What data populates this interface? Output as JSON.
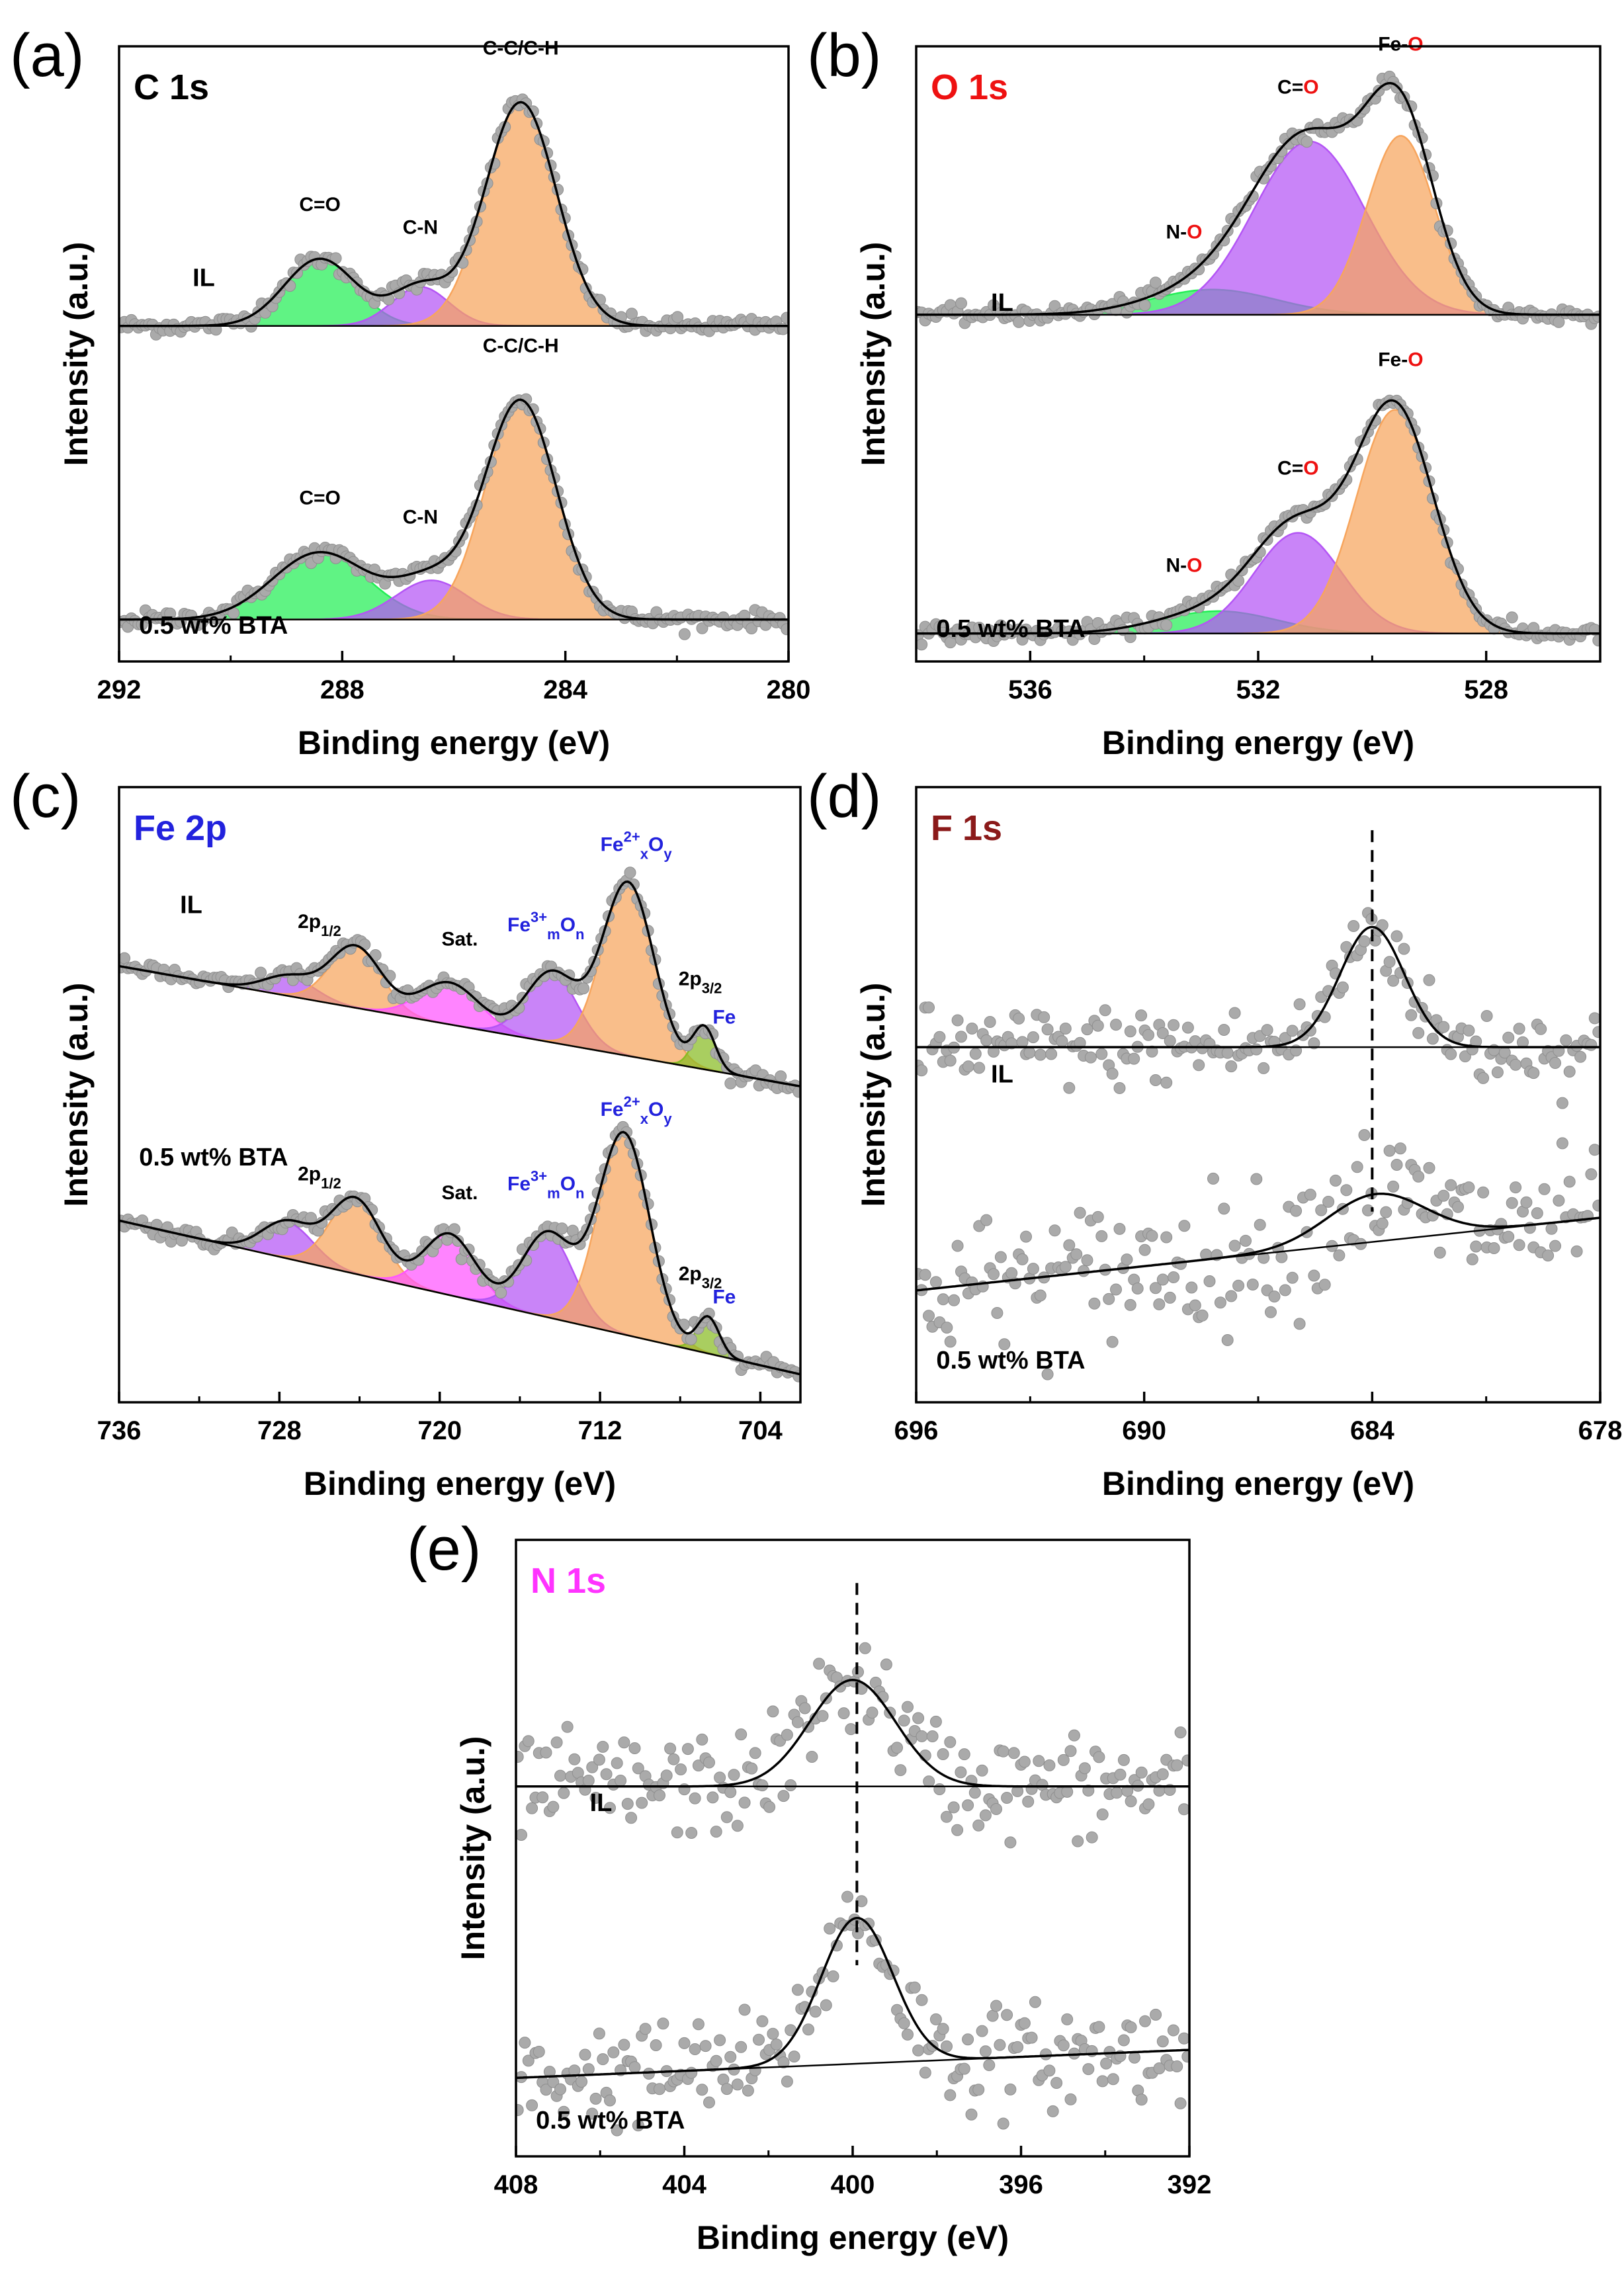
{
  "colors": {
    "green": "#22ee55",
    "purple": "#b455f5",
    "orange": "#f7a55d",
    "magenta": "#ff55ff",
    "olive": "#88bb22",
    "points": "#aaaaaa",
    "black": "#000000",
    "red": "#ee1111",
    "blue": "#2222dd",
    "darkred": "#8b1a1a",
    "pink": "#ff33ff"
  },
  "chart_data": [
    {
      "id": "a",
      "type": "scatter",
      "panel": "(a)",
      "title": "C 1s",
      "title_color": "black",
      "xlabel": "Binding energy (eV)",
      "ylabel": "Intensity (a.u.)",
      "xlim": [
        292,
        280
      ],
      "xticks": [
        "292",
        "288",
        "284",
        "280"
      ],
      "xtick_values": [
        292,
        288,
        284,
        280
      ],
      "ylim": [
        0,
        2.2
      ],
      "yticks": false,
      "spectra": [
        {
          "label": "IL",
          "baseline": [
            1.2,
            1.2
          ],
          "noise": 0.015,
          "peaks": [
            {
              "name": "C=O",
              "color": "green",
              "center": 288.4,
              "height": 0.24,
              "fwhm": 1.5
            },
            {
              "name": "C-N",
              "color": "purple",
              "center": 286.6,
              "height": 0.14,
              "fwhm": 1.2
            },
            {
              "name": "C-C/C-H",
              "color": "orange",
              "center": 284.8,
              "height": 0.8,
              "fwhm": 1.5
            }
          ],
          "annotations": [
            {
              "text": "C=O",
              "x": 288.4,
              "color": "black"
            },
            {
              "text": "C-N",
              "x": 286.6,
              "color": "black"
            },
            {
              "text": "C-C/C-H",
              "x": 284.8,
              "color": "black"
            }
          ]
        },
        {
          "label": "0.5 wt% BTA",
          "baseline": [
            0.15,
            0.15
          ],
          "noise": 0.015,
          "peaks": [
            {
              "name": "C=O",
              "color": "green",
              "center": 288.4,
              "height": 0.24,
              "fwhm": 2.0
            },
            {
              "name": "C-N",
              "color": "purple",
              "center": 286.4,
              "height": 0.14,
              "fwhm": 1.5
            },
            {
              "name": "C-C/C-H",
              "color": "orange",
              "center": 284.8,
              "height": 0.78,
              "fwhm": 1.5
            }
          ],
          "annotations": [
            {
              "text": "C=O",
              "x": 288.4,
              "color": "black"
            },
            {
              "text": "C-N",
              "x": 286.6,
              "color": "black"
            },
            {
              "text": "C-C/C-H",
              "x": 284.8,
              "color": "black"
            }
          ]
        }
      ]
    },
    {
      "id": "b",
      "type": "scatter",
      "panel": "(b)",
      "title": "O 1s",
      "title_color": "red",
      "xlabel": "Binding energy (eV)",
      "ylabel": "Intensity (a.u.)",
      "xlim": [
        538,
        526
      ],
      "xticks": [
        "536",
        "532",
        "528"
      ],
      "xtick_values": [
        536,
        532,
        528
      ],
      "ylim": [
        0,
        2.2
      ],
      "yticks": false,
      "spectra": [
        {
          "label": "IL",
          "baseline": [
            1.24,
            1.24
          ],
          "noise": 0.015,
          "peaks": [
            {
              "name": "N-O",
              "color": "green",
              "center": 532.8,
              "height": 0.09,
              "fwhm": 2.6
            },
            {
              "name": "C=O",
              "color": "purple",
              "center": 531.1,
              "height": 0.62,
              "fwhm": 2.3
            },
            {
              "name": "Fe-O",
              "color": "orange",
              "center": 529.5,
              "height": 0.64,
              "fwhm": 1.4
            }
          ],
          "annotations": [
            {
              "text": "N-O",
              "x": 533.3,
              "color": "mixed"
            },
            {
              "text": "C=O",
              "x": 531.3,
              "color": "mixed"
            },
            {
              "text": "Fe-O",
              "x": 529.5,
              "color": "mixed"
            }
          ]
        },
        {
          "label": "0.5 wt% BTA",
          "baseline": [
            0.1,
            0.1
          ],
          "noise": 0.015,
          "peaks": [
            {
              "name": "N-O",
              "color": "green",
              "center": 532.7,
              "height": 0.08,
              "fwhm": 2.4
            },
            {
              "name": "C=O",
              "color": "purple",
              "center": 531.3,
              "height": 0.36,
              "fwhm": 1.8
            },
            {
              "name": "Fe-O",
              "color": "orange",
              "center": 529.6,
              "height": 0.8,
              "fwhm": 1.6
            }
          ],
          "annotations": [
            {
              "text": "N-O",
              "x": 533.3,
              "color": "mixed"
            },
            {
              "text": "C=O",
              "x": 531.3,
              "color": "mixed"
            },
            {
              "text": "Fe-O",
              "x": 529.5,
              "color": "mixed"
            }
          ]
        }
      ]
    },
    {
      "id": "c",
      "type": "scatter",
      "panel": "(c)",
      "title": "Fe 2p",
      "title_color": "blue",
      "xlabel": "Binding energy (eV)",
      "ylabel": "Intensity (a.u.)",
      "xlim": [
        736,
        702
      ],
      "xticks": [
        "736",
        "728",
        "720",
        "712",
        "704"
      ],
      "xtick_values": [
        736,
        728,
        720,
        712,
        704
      ],
      "ylim": [
        0,
        2.2
      ],
      "yticks": false,
      "spectra": [
        {
          "label": "IL",
          "baseline": [
            1.56,
            1.13
          ],
          "noise": 0.015,
          "peaks": [
            {
              "name": "2p1/2-Fe3+",
              "color": "purple",
              "center": 727.5,
              "height": 0.07,
              "fwhm": 3.0
            },
            {
              "name": "2p1/2-Fe2+",
              "color": "orange",
              "center": 724.2,
              "height": 0.22,
              "fwhm": 3.0
            },
            {
              "name": "Sat.",
              "color": "magenta",
              "center": 719.5,
              "height": 0.15,
              "fwhm": 3.5
            },
            {
              "name": "Fe3+mOn",
              "color": "purple",
              "center": 714.4,
              "height": 0.25,
              "fwhm": 3.0
            },
            {
              "name": "Fe2+xOy",
              "color": "orange",
              "center": 710.6,
              "height": 0.62,
              "fwhm": 3.0
            },
            {
              "name": "Fe",
              "color": "olive",
              "center": 706.8,
              "height": 0.15,
              "fwhm": 1.3
            }
          ],
          "annotations": [
            {
              "text": "2p",
              "sub": "1/2",
              "x": 726.0,
              "color": "black"
            },
            {
              "text": "Sat.",
              "x": 719.0,
              "color": "black"
            },
            {
              "text": "Fe",
              "sup": "3+",
              "sub": "m",
              "tail": "On",
              "x": 714.7,
              "color": "blue"
            },
            {
              "text": "Fe",
              "sup": "2+",
              "sub": "x",
              "tail": "Oy",
              "x": 710.2,
              "color": "blue"
            },
            {
              "text": "2p",
              "sub": "3/2",
              "x": 707.0,
              "color": "black"
            },
            {
              "text": "Fe",
              "x": 705.8,
              "color": "blue"
            }
          ]
        },
        {
          "label": "0.5 wt% BTA",
          "baseline": [
            0.65,
            0.1
          ],
          "noise": 0.015,
          "peaks": [
            {
              "name": "2p1/2-Fe3+",
              "color": "purple",
              "center": 727.6,
              "height": 0.13,
              "fwhm": 3.0
            },
            {
              "name": "2p1/2-Fe2+",
              "color": "orange",
              "center": 724.2,
              "height": 0.27,
              "fwhm": 3.0
            },
            {
              "name": "Sat.",
              "color": "magenta",
              "center": 719.5,
              "height": 0.22,
              "fwhm": 3.0
            },
            {
              "name": "Fe3+mOn",
              "color": "purple",
              "center": 714.6,
              "height": 0.3,
              "fwhm": 3.0
            },
            {
              "name": "Fe2+xOy",
              "color": "orange",
              "center": 710.8,
              "height": 0.72,
              "fwhm": 3.0
            },
            {
              "name": "Fe",
              "color": "olive",
              "center": 706.6,
              "height": 0.13,
              "fwhm": 1.3
            }
          ],
          "annotations": [
            {
              "text": "2p",
              "sub": "1/2",
              "x": 726.0,
              "color": "black"
            },
            {
              "text": "Sat.",
              "x": 719.0,
              "color": "black"
            },
            {
              "text": "Fe",
              "sup": "3+",
              "sub": "m",
              "tail": "On",
              "x": 714.7,
              "color": "blue"
            },
            {
              "text": "Fe",
              "sup": "2+",
              "sub": "x",
              "tail": "Oy",
              "x": 710.2,
              "color": "blue"
            },
            {
              "text": "2p",
              "sub": "3/2",
              "x": 707.0,
              "color": "black"
            },
            {
              "text": "Fe",
              "x": 705.8,
              "color": "blue"
            }
          ]
        }
      ]
    },
    {
      "id": "d",
      "type": "scatter",
      "panel": "(d)",
      "title": "F 1s",
      "title_color": "darkred",
      "xlabel": "Binding energy (eV)",
      "ylabel": "Intensity (a.u.)",
      "xlim": [
        696,
        678
      ],
      "xticks": [
        "696",
        "690",
        "684",
        "678"
      ],
      "xtick_values": [
        696,
        690,
        684,
        678
      ],
      "ylim": [
        0,
        2.2
      ],
      "yticks": false,
      "dashed_x": 684.0,
      "spectra": [
        {
          "label": "IL",
          "baseline": [
            1.27,
            1.27
          ],
          "noise": 0.07,
          "peaks": [
            {
              "name": "F",
              "color": "none",
              "center": 684.0,
              "height": 0.43,
              "fwhm": 2.0
            }
          ],
          "annotations": []
        },
        {
          "label": "0.5 wt% BTA",
          "baseline": [
            0.4,
            0.66
          ],
          "noise": 0.12,
          "peaks": [
            {
              "name": "F",
              "color": "none",
              "center": 683.9,
              "height": 0.17,
              "fwhm": 3.0
            }
          ],
          "annotations": []
        }
      ]
    },
    {
      "id": "e",
      "type": "scatter",
      "panel": "(e)",
      "title": "N 1s",
      "title_color": "pink",
      "xlabel": "Binding energy (eV)",
      "ylabel": "Intensity (a.u.)",
      "xlim": [
        408,
        392
      ],
      "xticks": [
        "408",
        "404",
        "400",
        "396",
        "392"
      ],
      "xtick_values": [
        408,
        404,
        400,
        396,
        392
      ],
      "ylim": [
        0,
        2.2
      ],
      "yticks": false,
      "dashed_x": 399.9,
      "spectra": [
        {
          "label": "IL",
          "baseline": [
            1.32,
            1.32
          ],
          "noise": 0.09,
          "peaks": [
            {
              "name": "N",
              "color": "none",
              "center": 400.0,
              "height": 0.38,
              "fwhm": 2.4
            }
          ],
          "annotations": []
        },
        {
          "label": "0.5 wt% BTA",
          "baseline": [
            0.28,
            0.38
          ],
          "noise": 0.09,
          "peaks": [
            {
              "name": "N",
              "color": "none",
              "center": 399.9,
              "height": 0.52,
              "fwhm": 2.0
            }
          ],
          "annotations": []
        }
      ]
    }
  ]
}
